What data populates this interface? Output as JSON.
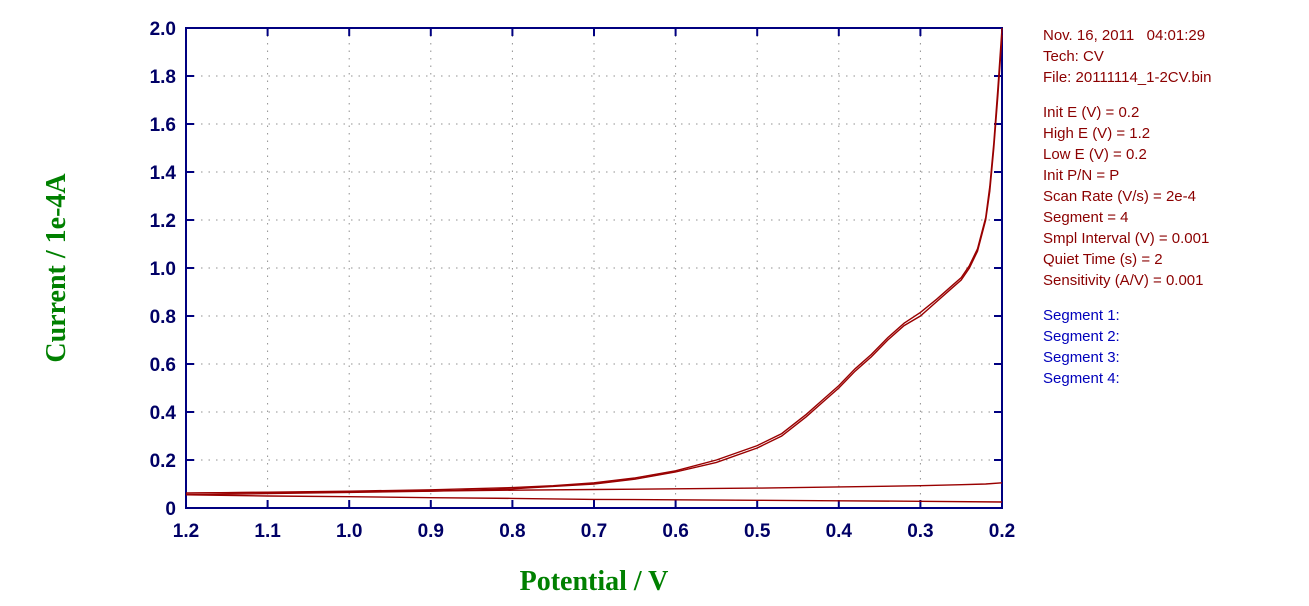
{
  "panel": {
    "header": [
      "Nov. 16, 2011   04:01:29",
      "Tech: CV",
      "File: 20111114_1-2CV.bin"
    ],
    "params": [
      "Init E (V) = 0.2",
      "High E (V) = 1.2",
      "Low E (V) = 0.2",
      "Init P/N = P",
      "Scan Rate (V/s) = 2e-4",
      "Segment = 4",
      "Smpl Interval (V) = 0.001",
      "Quiet Time (s) = 2",
      "Sensitivity (A/V) = 0.001"
    ],
    "segments": [
      "Segment 1:",
      "Segment 2:",
      "Segment 3:",
      "Segment 4:"
    ],
    "colors": {
      "info": "#8b0000",
      "segments": "#0000bb"
    }
  },
  "chart_data": {
    "type": "line",
    "title": "",
    "xlabel": "Potential / V",
    "ylabel": "Current / 1e-4A",
    "xlim": [
      1.2,
      0.2
    ],
    "ylim": [
      0,
      2.0
    ],
    "x_axis_reversed": true,
    "grid": "dotted",
    "legend": "none",
    "x_ticks": [
      "1.2",
      "1.1",
      "1.0",
      "0.9",
      "0.8",
      "0.7",
      "0.6",
      "0.5",
      "0.4",
      "0.3",
      "0.2"
    ],
    "y_ticks": [
      "2.0",
      "1.8",
      "1.6",
      "1.4",
      "1.2",
      "1.0",
      "0.8",
      "0.6",
      "0.4",
      "0.2",
      "0"
    ],
    "axis_color": "#000080",
    "tick_color": "#000066",
    "grid_color": "#909090",
    "line_color": "#990000",
    "series": [
      {
        "name": "Segment 1",
        "points": [
          [
            0.2,
            0.025
          ],
          [
            0.3,
            0.028
          ],
          [
            0.4,
            0.03
          ],
          [
            0.5,
            0.032
          ],
          [
            0.6,
            0.034
          ],
          [
            0.7,
            0.036
          ],
          [
            0.8,
            0.04
          ],
          [
            0.9,
            0.043
          ],
          [
            1.0,
            0.047
          ],
          [
            1.1,
            0.05
          ],
          [
            1.2,
            0.055
          ]
        ]
      },
      {
        "name": "Segment 2",
        "points": [
          [
            1.2,
            0.055
          ],
          [
            1.1,
            0.06
          ],
          [
            1.0,
            0.065
          ],
          [
            0.9,
            0.07
          ],
          [
            0.8,
            0.08
          ],
          [
            0.75,
            0.09
          ],
          [
            0.7,
            0.1
          ],
          [
            0.65,
            0.12
          ],
          [
            0.6,
            0.15
          ],
          [
            0.55,
            0.19
          ],
          [
            0.5,
            0.25
          ],
          [
            0.47,
            0.3
          ],
          [
            0.44,
            0.38
          ],
          [
            0.42,
            0.44
          ],
          [
            0.4,
            0.5
          ],
          [
            0.38,
            0.57
          ],
          [
            0.36,
            0.63
          ],
          [
            0.34,
            0.7
          ],
          [
            0.32,
            0.76
          ],
          [
            0.3,
            0.8
          ],
          [
            0.28,
            0.86
          ],
          [
            0.26,
            0.92
          ],
          [
            0.25,
            0.95
          ],
          [
            0.24,
            1.0
          ],
          [
            0.23,
            1.07
          ],
          [
            0.22,
            1.2
          ],
          [
            0.215,
            1.32
          ],
          [
            0.21,
            1.5
          ],
          [
            0.205,
            1.72
          ],
          [
            0.2,
            1.97
          ]
        ]
      },
      {
        "name": "Segment 3",
        "points": [
          [
            0.2,
            0.105
          ],
          [
            0.22,
            0.1
          ],
          [
            0.25,
            0.097
          ],
          [
            0.3,
            0.093
          ],
          [
            0.4,
            0.088
          ],
          [
            0.5,
            0.083
          ],
          [
            0.6,
            0.08
          ],
          [
            0.7,
            0.077
          ],
          [
            0.8,
            0.074
          ],
          [
            0.9,
            0.071
          ],
          [
            1.0,
            0.068
          ],
          [
            1.1,
            0.065
          ],
          [
            1.2,
            0.062
          ]
        ]
      },
      {
        "name": "Segment 4",
        "points": [
          [
            1.2,
            0.062
          ],
          [
            1.1,
            0.066
          ],
          [
            1.0,
            0.07
          ],
          [
            0.9,
            0.076
          ],
          [
            0.8,
            0.085
          ],
          [
            0.75,
            0.093
          ],
          [
            0.7,
            0.105
          ],
          [
            0.65,
            0.125
          ],
          [
            0.6,
            0.155
          ],
          [
            0.55,
            0.2
          ],
          [
            0.5,
            0.26
          ],
          [
            0.47,
            0.31
          ],
          [
            0.44,
            0.39
          ],
          [
            0.42,
            0.45
          ],
          [
            0.4,
            0.51
          ],
          [
            0.38,
            0.58
          ],
          [
            0.36,
            0.64
          ],
          [
            0.34,
            0.71
          ],
          [
            0.32,
            0.77
          ],
          [
            0.3,
            0.815
          ],
          [
            0.28,
            0.87
          ],
          [
            0.26,
            0.93
          ],
          [
            0.25,
            0.96
          ],
          [
            0.24,
            1.01
          ],
          [
            0.23,
            1.08
          ],
          [
            0.22,
            1.21
          ],
          [
            0.215,
            1.34
          ],
          [
            0.21,
            1.52
          ],
          [
            0.205,
            1.75
          ],
          [
            0.2,
            2.0
          ]
        ]
      }
    ]
  }
}
